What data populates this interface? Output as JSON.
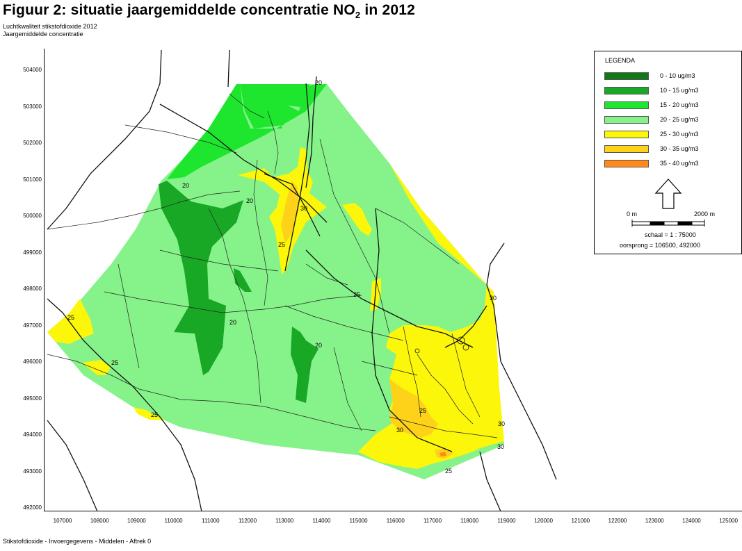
{
  "title": {
    "main": "Figuur 2: situatie jaargemiddelde concentratie NO",
    "subscript": "2",
    "suffix": " in 2012"
  },
  "subtitle_lines": [
    "Luchtkwaliteit stikstofdioxide 2012",
    "Jaargemiddelde concentratie"
  ],
  "footer": "Stikstofdioxide - Invoergegevens - Middelen - Aftrek 0",
  "y_axis_ticks": [
    "504000",
    "503000",
    "502000",
    "501000",
    "500000",
    "499000",
    "498000",
    "497000",
    "496000",
    "495000",
    "494000",
    "493000",
    "492000"
  ],
  "x_axis_ticks": [
    "107000",
    "108000",
    "109000",
    "110000",
    "111000",
    "112000",
    "113000",
    "114000",
    "115000",
    "116000",
    "117000",
    "118000",
    "119000",
    "120000",
    "121000",
    "122000",
    "123000",
    "124000",
    "125000"
  ],
  "legend": {
    "title": "LEGENDA",
    "items": [
      {
        "label": "0 - 10 ug/m3",
        "color": "#0f7a14"
      },
      {
        "label": "10 - 15 ug/m3",
        "color": "#19a825"
      },
      {
        "label": "15 - 20 ug/m3",
        "color": "#1ee62e"
      },
      {
        "label": "20 - 25 ug/m3",
        "color": "#86f28a"
      },
      {
        "label": "25 - 30 ug/m3",
        "color": "#fbf60a"
      },
      {
        "label": "30 - 35 ug/m3",
        "color": "#ffd21a"
      },
      {
        "label": "35 - 40 ug/m3",
        "color": "#ff8a1a"
      }
    ],
    "north_icon": "north-arrow-icon",
    "scale_start": "0 m",
    "scale_end": "2000 m",
    "scale_text": "schaal = 1 : 75000",
    "origin_text": "oorsprong = 106500, 492000"
  },
  "contour_labels": [
    "20",
    "20",
    "20",
    "20",
    "20",
    "25",
    "25",
    "25",
    "25",
    "25",
    "25",
    "25",
    "30",
    "30",
    "30",
    "30",
    "30"
  ]
}
